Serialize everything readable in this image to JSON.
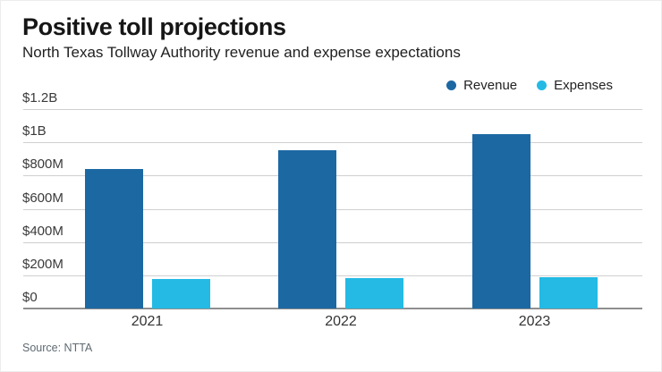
{
  "chart_data": {
    "type": "bar",
    "title": "Positive toll projections",
    "subtitle": "North Texas Tollway Authority revenue and expense expectations",
    "source": "Source: NTTA",
    "categories": [
      "2021",
      "2022",
      "2023"
    ],
    "series": [
      {
        "name": "Revenue",
        "color_key": "revenue",
        "values_musd": [
          840,
          955,
          1050
        ]
      },
      {
        "name": "Expenses",
        "color_key": "expenses",
        "values_musd": [
          180,
          185,
          190
        ]
      }
    ],
    "unit": "USD millions",
    "ylim_musd": [
      0,
      1200
    ],
    "yticks": [
      {
        "label": "$0",
        "value_musd": 0
      },
      {
        "label": "$200M",
        "value_musd": 200
      },
      {
        "label": "$400M",
        "value_musd": 400
      },
      {
        "label": "$600M",
        "value_musd": 600
      },
      {
        "label": "$800M",
        "value_musd": 800
      },
      {
        "label": "$1B",
        "value_musd": 1000
      },
      {
        "label": "$1.2B",
        "value_musd": 1200
      }
    ],
    "grid": "horizontal",
    "legend_position": "top-right"
  },
  "colors": {
    "revenue": "#1c68a3",
    "expenses": "#24bae4",
    "gridline": "#cfcfcf",
    "axis_line": "#8f8f8f"
  }
}
